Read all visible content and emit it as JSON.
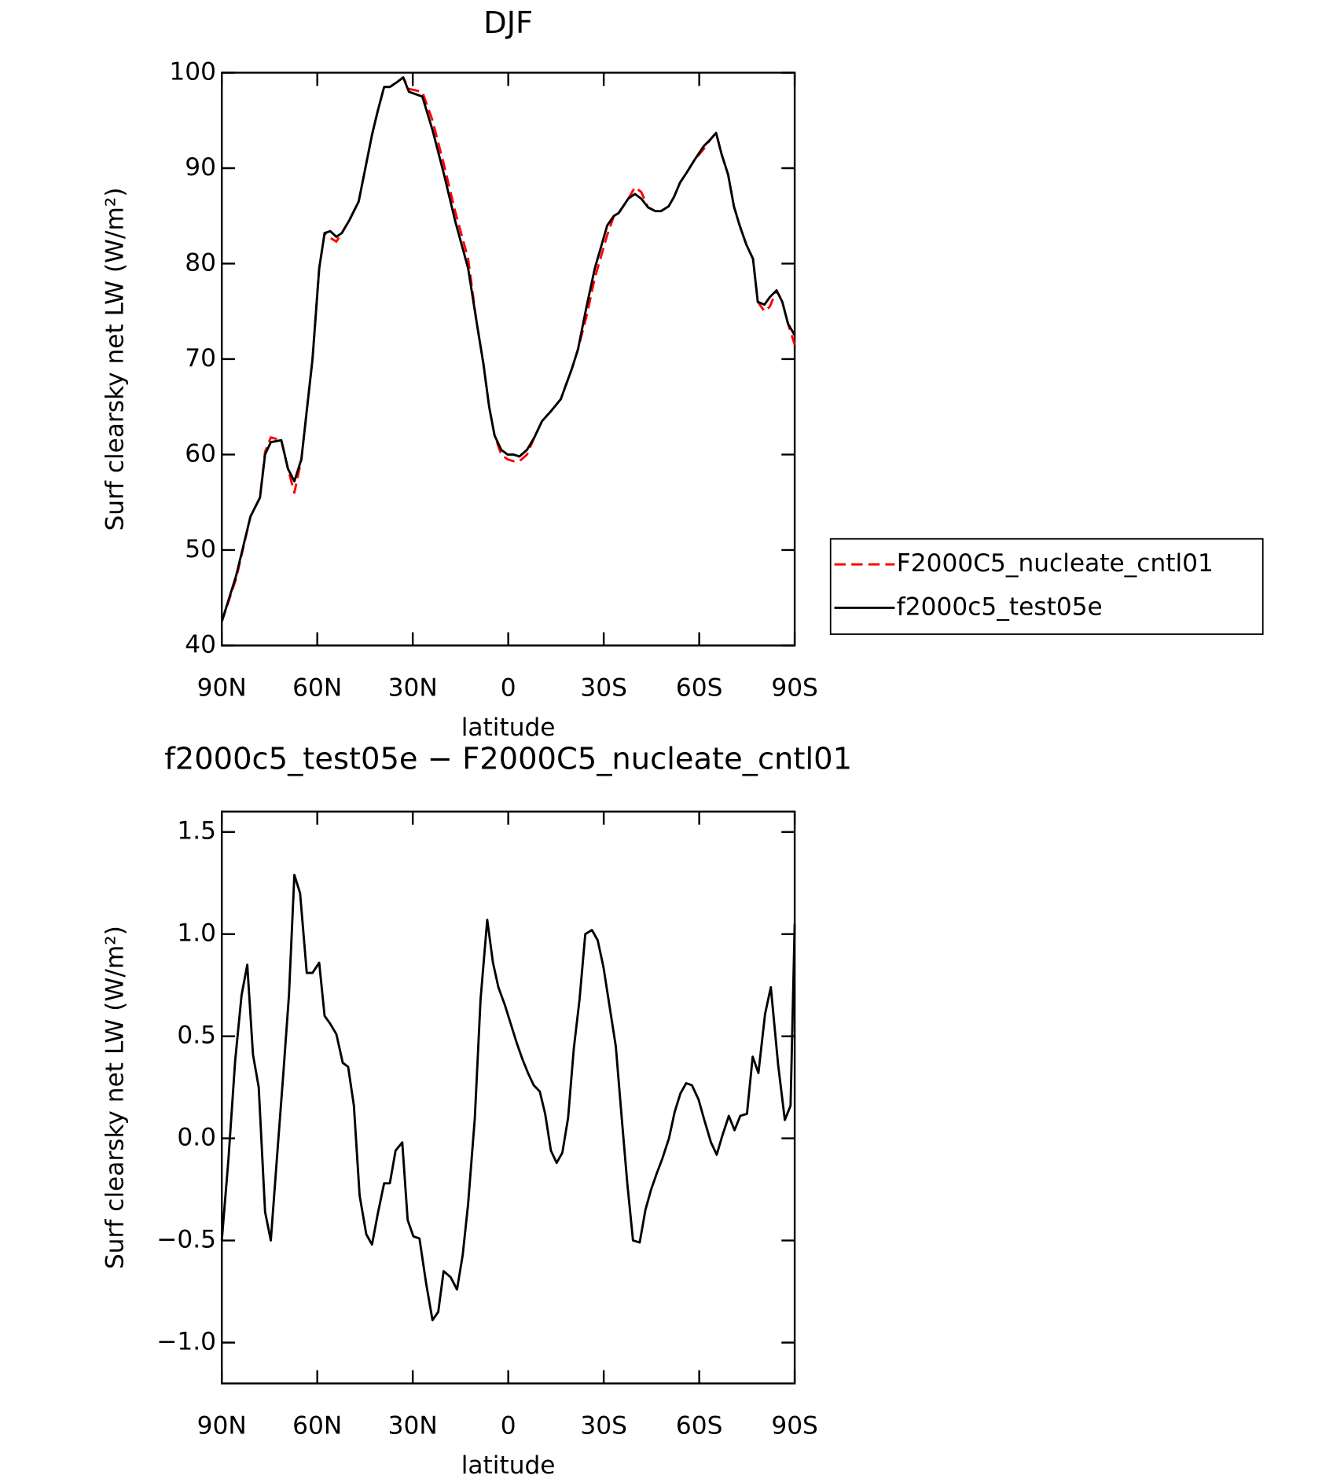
{
  "chart_data": [
    {
      "type": "line",
      "title": "DJF",
      "xlabel": "latitude",
      "ylabel": "Surf clearsky net LW (W/m²)",
      "xlim": [
        90,
        -90
      ],
      "ylim": [
        40,
        100
      ],
      "xticks": [
        {
          "value": 90,
          "label": "90N"
        },
        {
          "value": 60,
          "label": "60N"
        },
        {
          "value": 30,
          "label": "30N"
        },
        0,
        {
          "value": -30,
          "label": "30S"
        },
        {
          "value": -60,
          "label": "60S"
        },
        {
          "value": -90,
          "label": "90S"
        }
      ],
      "yticks": [
        40,
        50,
        60,
        70,
        80,
        90,
        100
      ],
      "legend": "right",
      "x": [
        90,
        85.5,
        81,
        78,
        76.4,
        74.6,
        71.3,
        69.2,
        67.2,
        65,
        61.5,
        59.4,
        57.7,
        55.9,
        54,
        52.3,
        50,
        47,
        44.9,
        42.8,
        41,
        39,
        37.2,
        35,
        33,
        31.2,
        27,
        23.8,
        20.3,
        16.7,
        12.6,
        10,
        7.8,
        6,
        4.3,
        2.2,
        0.2,
        -1.7,
        -3.5,
        -5.9,
        -8.2,
        -10.6,
        -13.3,
        -16.5,
        -20,
        -21.9,
        -24.6,
        -27.2,
        -31.1,
        -33.2,
        -34.7,
        -37.7,
        -39.8,
        -41.8,
        -43.9,
        -46.2,
        -48,
        -50.4,
        -52.1,
        -54,
        -56,
        -58.4,
        -61.4,
        -63.5,
        -65.3,
        -67,
        -69.1,
        -70.9,
        -72.7,
        -74.8,
        -76.9,
        -78.4,
        -80.5,
        -82.2,
        -84.3,
        -86.1,
        -87.9,
        -90
      ],
      "series": [
        {
          "name": "F2000C5_nucleate_cntl01",
          "color": "#ff0000",
          "dash": true,
          "values": [
            42.5,
            47,
            53.5,
            55.5,
            60.3,
            61.8,
            61.5,
            58.5,
            56,
            59.5,
            70,
            79.5,
            83.2,
            82.7,
            82.3,
            83.2,
            84.5,
            86.5,
            90,
            93.5,
            96,
            98.5,
            98.5,
            99,
            99.5,
            98.3,
            98,
            95,
            90.5,
            85.5,
            80.5,
            74,
            69.5,
            65,
            62,
            60,
            59.5,
            59.3,
            59.3,
            60,
            61.8,
            63.5,
            64.5,
            65.8,
            69,
            71,
            74.5,
            78.5,
            83,
            85,
            85.3,
            86.8,
            88,
            87.5,
            85.9,
            85.5,
            85.5,
            86,
            87,
            88.5,
            89.5,
            90.8,
            92,
            93,
            93.7,
            91.5,
            89.3,
            86,
            84,
            82,
            80.5,
            76,
            75,
            75.5,
            77.2,
            76,
            73.7,
            71.5
          ]
        },
        {
          "name": "f2000c5_test05e",
          "color": "#000000",
          "dash": false,
          "values": [
            42.5,
            47.3,
            53.5,
            55.5,
            60,
            61.3,
            61.5,
            58.5,
            57.2,
            59.5,
            70,
            79.5,
            83.2,
            83.4,
            82.8,
            83.2,
            84.5,
            86.5,
            90,
            93.5,
            96,
            98.5,
            98.5,
            99,
            99.5,
            98,
            97.5,
            94,
            89.5,
            84.5,
            79.5,
            74,
            69.5,
            65,
            62,
            60.5,
            60,
            60,
            59.8,
            60.5,
            61.8,
            63.5,
            64.5,
            65.8,
            69,
            71,
            75.5,
            79.5,
            84,
            85,
            85.3,
            86.8,
            87.3,
            86.8,
            85.9,
            85.5,
            85.5,
            86,
            87,
            88.5,
            89.5,
            90.8,
            92.3,
            93,
            93.7,
            91.5,
            89.3,
            86,
            84,
            82,
            80.5,
            76,
            75.7,
            76.5,
            77.2,
            76,
            73.7,
            72.5
          ]
        }
      ]
    },
    {
      "type": "line",
      "title": "f2000c5_test05e − F2000C5_nucleate_cntl01",
      "xlabel": "latitude",
      "ylabel": "Surf clearsky net LW (W/m²)",
      "xlim": [
        90,
        -90
      ],
      "ylim": [
        -1.2,
        1.6
      ],
      "xticks": [
        {
          "value": 90,
          "label": "90N"
        },
        {
          "value": 60,
          "label": "60N"
        },
        {
          "value": 30,
          "label": "30N"
        },
        0,
        {
          "value": -30,
          "label": "30S"
        },
        {
          "value": -60,
          "label": "60S"
        },
        {
          "value": -90,
          "label": "90S"
        }
      ],
      "yticks": [
        {
          "value": -1.0,
          "label": "−1.0"
        },
        {
          "value": -0.5,
          "label": "−0.5"
        },
        {
          "value": 0,
          "label": "0.0"
        },
        0.5,
        {
          "value": 1.0,
          "label": "1.0"
        },
        1.5
      ],
      "color": "#000000",
      "x": [
        90,
        87.9,
        85.8,
        83.8,
        82,
        80.2,
        78.4,
        76.4,
        74.6,
        72.5,
        70.7,
        68.9,
        67.2,
        65.4,
        63.3,
        61.5,
        59.4,
        57.7,
        55.9,
        54,
        52,
        50.3,
        48.5,
        46.7,
        44.6,
        42.8,
        41,
        39,
        37.2,
        35.4,
        33.3,
        31.6,
        29.8,
        27.9,
        25.8,
        23.8,
        22,
        20.3,
        18.1,
        16.1,
        14.3,
        12.6,
        10.5,
        8.7,
        6.6,
        4.8,
        3.1,
        1,
        -0.8,
        -2.6,
        -4.4,
        -6.2,
        -8,
        -9.9,
        -11.6,
        -13.4,
        -15.2,
        -17,
        -18.8,
        -20.6,
        -22.4,
        -24.2,
        -26.3,
        -28.1,
        -29.9,
        -32,
        -33.8,
        -35.6,
        -37.4,
        -39.2,
        -41.3,
        -43.1,
        -44.9,
        -46.7,
        -48.4,
        -50.5,
        -52.3,
        -54.1,
        -55.9,
        -57.7,
        -59.8,
        -61.6,
        -63.7,
        -65.5,
        -67.2,
        -69.3,
        -71.1,
        -72.9,
        -75,
        -76.8,
        -78.6,
        -80.7,
        -82.5,
        -84.8,
        -86.9,
        -88.7,
        -90
      ],
      "values": [
        -0.5,
        -0.1,
        0.38,
        0.7,
        0.85,
        0.41,
        0.25,
        -0.36,
        -0.5,
        -0.06,
        0.31,
        0.7,
        1.29,
        1.2,
        0.81,
        0.81,
        0.86,
        0.6,
        0.56,
        0.51,
        0.37,
        0.35,
        0.16,
        -0.28,
        -0.47,
        -0.52,
        -0.37,
        -0.22,
        -0.22,
        -0.06,
        -0.02,
        -0.4,
        -0.48,
        -0.49,
        -0.71,
        -0.89,
        -0.85,
        -0.65,
        -0.68,
        -0.74,
        -0.57,
        -0.32,
        0.1,
        0.68,
        1.07,
        0.86,
        0.74,
        0.65,
        0.56,
        0.47,
        0.39,
        0.32,
        0.26,
        0.23,
        0.12,
        -0.06,
        -0.12,
        -0.07,
        0.1,
        0.44,
        0.68,
        1.0,
        1.02,
        0.97,
        0.84,
        0.63,
        0.45,
        0.11,
        -0.22,
        -0.5,
        -0.51,
        -0.35,
        -0.25,
        -0.17,
        -0.1,
        0,
        0.13,
        0.22,
        0.27,
        0.26,
        0.19,
        0.09,
        -0.02,
        -0.08,
        0.01,
        0.11,
        0.04,
        0.11,
        0.12,
        0.4,
        0.32,
        0.61,
        0.74,
        0.36,
        0.09,
        0.16,
        1.05
      ]
    }
  ]
}
